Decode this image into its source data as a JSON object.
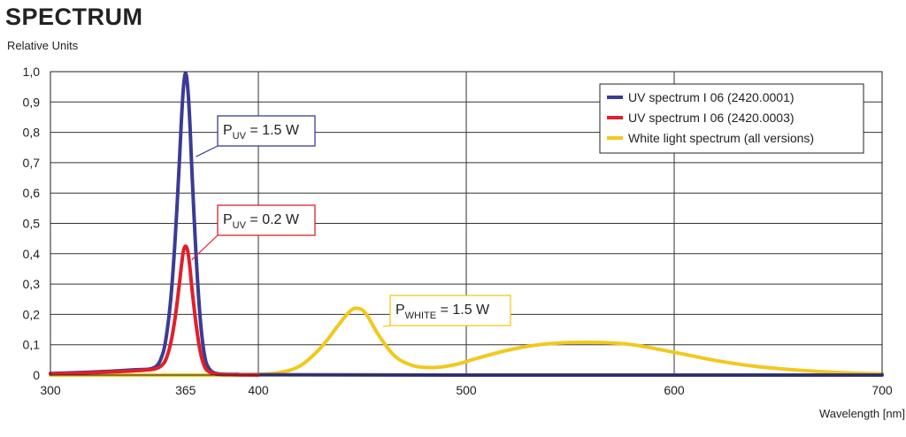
{
  "chart_data": {
    "type": "line",
    "title": "SPECTRUM",
    "ylabel": "Relative Units",
    "xlabel": "Wavelength [nm]",
    "xlim": [
      300,
      700
    ],
    "ylim": [
      0,
      1.0
    ],
    "x_ticks": [
      300,
      365,
      400,
      500,
      600,
      700
    ],
    "x_tick_labels": [
      "300",
      "365",
      "400",
      "500",
      "600",
      "700"
    ],
    "x_grid": [
      300,
      400,
      500,
      600,
      700
    ],
    "y_ticks": [
      0,
      0.1,
      0.2,
      0.3,
      0.4,
      0.5,
      0.6,
      0.7,
      0.8,
      0.9,
      1.0
    ],
    "y_tick_labels": [
      "0",
      "0,1",
      "0,2",
      "0,3",
      "0,4",
      "0,5",
      "0,6",
      "0,7",
      "0,8",
      "0,9",
      "1,0"
    ],
    "grid": true,
    "legend_position": "top-right",
    "series": [
      {
        "name": "UV spectrum I 06 (2420.0001)",
        "color": "#3b3b96",
        "x": [
          300,
          320,
          340,
          350,
          354,
          356,
          358,
          360,
          362,
          363,
          364,
          365,
          366,
          367,
          368,
          370,
          372,
          374,
          376,
          380,
          390,
          400,
          500,
          600,
          700
        ],
        "y": [
          0.005,
          0.01,
          0.017,
          0.025,
          0.07,
          0.14,
          0.26,
          0.45,
          0.7,
          0.84,
          0.95,
          0.995,
          0.95,
          0.84,
          0.68,
          0.4,
          0.19,
          0.07,
          0.025,
          0.005,
          0.002,
          0.001,
          0.0,
          0.0,
          0.0
        ]
      },
      {
        "name": "UV spectrum I 06 (2420.0003)",
        "color": "#e0202a",
        "x": [
          300,
          320,
          340,
          350,
          354,
          356,
          358,
          360,
          362,
          363,
          364,
          365,
          366,
          367,
          368,
          370,
          372,
          374,
          376,
          380,
          390,
          400
        ],
        "y": [
          0.004,
          0.008,
          0.014,
          0.02,
          0.035,
          0.06,
          0.11,
          0.19,
          0.3,
          0.36,
          0.41,
          0.425,
          0.41,
          0.36,
          0.29,
          0.17,
          0.08,
          0.03,
          0.012,
          0.003,
          0.001,
          0.0
        ]
      },
      {
        "name": "White light spectrum (all versions)",
        "color": "#f2c81c",
        "x": [
          300,
          360,
          390,
          400,
          410,
          420,
          430,
          438,
          444,
          448,
          452,
          458,
          466,
          475,
          485,
          495,
          505,
          520,
          535,
          550,
          565,
          580,
          600,
          620,
          640,
          660,
          680,
          700
        ],
        "y": [
          0.0,
          0.0,
          0.0,
          0.002,
          0.008,
          0.03,
          0.09,
          0.16,
          0.21,
          0.22,
          0.2,
          0.13,
          0.06,
          0.03,
          0.025,
          0.035,
          0.055,
          0.082,
          0.1,
          0.107,
          0.107,
          0.1,
          0.075,
          0.048,
          0.028,
          0.016,
          0.008,
          0.004
        ]
      }
    ],
    "annotations": [
      {
        "main": "P",
        "sub": "UV",
        "rest": " = 1.5 W",
        "border": "#3b3b96",
        "anchor_x": 370,
        "anchor_y": 0.72
      },
      {
        "main": "P",
        "sub": "UV",
        "rest": " = 0.2 W",
        "border": "#e0202a",
        "anchor_x": 368,
        "anchor_y": 0.38
      },
      {
        "main": "P",
        "sub": "WHITE",
        "rest": " = 1.5 W",
        "border": "#f2c81c",
        "anchor_x": 460,
        "anchor_y": 0.16
      }
    ]
  }
}
